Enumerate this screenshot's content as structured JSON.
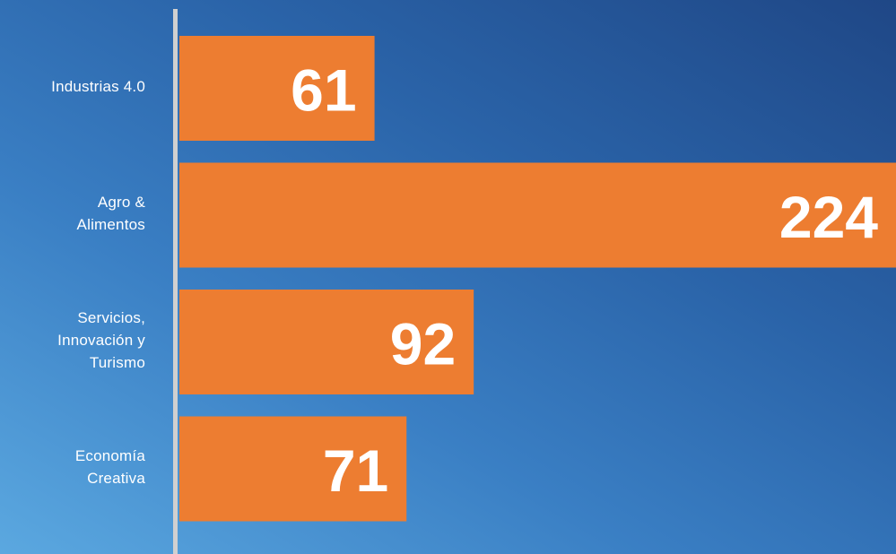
{
  "chart_data": {
    "type": "bar",
    "orientation": "horizontal",
    "categories": [
      "Industrias 4.0",
      "Agro &\nAlimentos",
      "Servicios,\nInnovación y\nTurismo",
      "Economía\nCreativa"
    ],
    "values": [
      61,
      224,
      92,
      71
    ],
    "color": "#ed7d31"
  }
}
